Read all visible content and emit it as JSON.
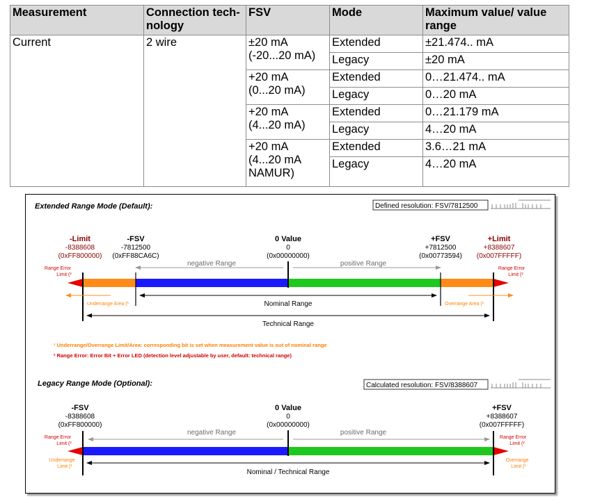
{
  "table": {
    "headers": {
      "measurement": "Measurement",
      "connection": "Connection tech-nology",
      "fsv": "FSV",
      "mode": "Mode",
      "max_value": "Maximum value/ value range"
    },
    "measurement": "Current",
    "connection": "2 wire",
    "groups": [
      {
        "fsv_line1": "±20 mA",
        "fsv_line2": "(-20...20 mA)",
        "fsv_line3": "",
        "rows": [
          {
            "mode": "Extended",
            "range": "±21.474.. mA"
          },
          {
            "mode": "Legacy",
            "range": "±20 mA"
          }
        ]
      },
      {
        "fsv_line1": "+20 mA",
        "fsv_line2": "(0...20 mA)",
        "fsv_line3": "",
        "rows": [
          {
            "mode": "Extended",
            "range": "0…21.474.. mA"
          },
          {
            "mode": "Legacy",
            "range": "0…20 mA"
          }
        ]
      },
      {
        "fsv_line1": "+20 mA",
        "fsv_line2": "(4...20 mA)",
        "fsv_line3": "",
        "rows": [
          {
            "mode": "Extended",
            "range": "0…21.179 mA"
          },
          {
            "mode": "Legacy",
            "range": "4…20 mA"
          }
        ]
      },
      {
        "fsv_line1": "+20 mA",
        "fsv_line2": "(4...20 mA",
        "fsv_line3": "NAMUR)",
        "rows": [
          {
            "mode": "Extended",
            "range": "3.6…21 mA"
          },
          {
            "mode": "Legacy",
            "range": "4…20 mA"
          }
        ]
      }
    ]
  },
  "diagram": {
    "colors": {
      "negative": "#1a1aff",
      "positive": "#1ec81e",
      "overrange": "#ff8c1a",
      "error": "#e60000",
      "limit_text": "#8b0000",
      "note_orange": "#ff7f00",
      "note_red": "#d40000"
    },
    "extended": {
      "title": "Extended Range Mode (Default):",
      "resolution": "Defined resolution:  FSV/7812500",
      "neg_limit": {
        "title": "-Limit",
        "value": "-8388608",
        "hex": "(0xFF800000)"
      },
      "neg_fsv": {
        "title": "-FSV",
        "value": "-7812500",
        "hex": "(0xFF88CA6C)"
      },
      "zero": {
        "title": "0 Value",
        "value": "0",
        "hex": "(0x00000000)"
      },
      "pos_fsv": {
        "title": "+FSV",
        "value": "+7812500",
        "hex": "(0x00773594)"
      },
      "pos_limit": {
        "title": "+Limit",
        "value": "+8388607",
        "hex": "(0x007FFFFF)"
      },
      "negative_range": "negative Range",
      "positive_range": "positive Range",
      "range_error_left": "Range Error",
      "limit_left": "Limit (²",
      "range_error_right": "Range Error",
      "limit_right": "Limit (²",
      "underrange_area": "Underrange Area (¹",
      "overrange_area": "Overrange Area (¹",
      "nominal_range": "Nominal Range",
      "technical_range": "Technical Range"
    },
    "notes": {
      "note1": "¹ Underrange/Overrange Limit/Area: corresponding bit is set when measurement value is out of nominal range",
      "note2": "² Range Error: Error Bit + Error LED (detection level adjustable by user, default: technical range)"
    },
    "legacy": {
      "title": "Legacy Range Mode (Optional):",
      "resolution": "Calculated resolution:  FSV/8388607",
      "neg_fsv": {
        "title": "-FSV",
        "value": "-8388608",
        "hex": "(0xFF800000)"
      },
      "zero": {
        "title": "0 Value",
        "value": "0",
        "hex": "(0x00000000)"
      },
      "pos_fsv": {
        "title": "+FSV",
        "value": "+8388607",
        "hex": "(0x007FFFFF)"
      },
      "negative_range": "negative Range",
      "positive_range": "positive Range",
      "range_error_left": "Range Error",
      "limit_left": "Limit (²",
      "underrange_left": "Underrange",
      "underrange_limit_left": "Limit (¹",
      "range_error_right": "Range Error",
      "limit_right": "Limit (²",
      "overrange_right": "Overrange",
      "overrange_limit_right": "Limit (¹",
      "nominal_technical_range": "Nominal / Technical Range"
    }
  }
}
